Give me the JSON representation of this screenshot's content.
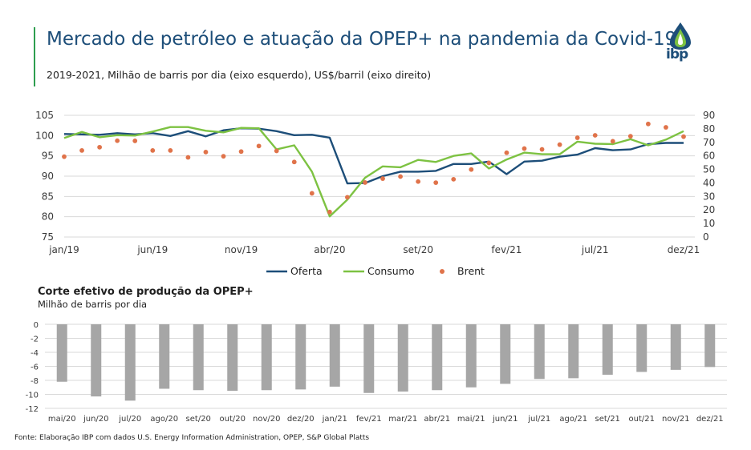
{
  "header": {
    "title": "Mercado de petróleo e atuação da OPEP+ na pandemia da Covid-19",
    "subtitle": "2019-2021, Milhão de barris por dia (eixo esquerdo), US$/barril (eixo direito)",
    "logo_text": "ibp"
  },
  "colors": {
    "oferta": "#1d4e79",
    "consumo": "#7dc242",
    "brent": "#e0734a",
    "bars": "#a6a6a6",
    "grid": "#d9d9d9",
    "title": "#1d4e79",
    "accent": "#2e9e4f"
  },
  "chart_data": [
    {
      "type": "line",
      "title": "",
      "xlabel": "",
      "ylabel": "Milhão de barris por dia",
      "y2label": "US$/barril",
      "ylim": [
        75,
        105
      ],
      "y2lim": [
        0,
        90
      ],
      "yticks": [
        "75",
        "80",
        "85",
        "90",
        "95",
        "100",
        "105"
      ],
      "y2ticks": [
        "0",
        "10",
        "20",
        "30",
        "40",
        "50",
        "60",
        "70",
        "80",
        "90"
      ],
      "x_tick_labels": [
        {
          "index": 0,
          "label": "jan/19"
        },
        {
          "index": 5,
          "label": "jun/19"
        },
        {
          "index": 10,
          "label": "nov/19"
        },
        {
          "index": 15,
          "label": "abr/20"
        },
        {
          "index": 20,
          "label": "set/20"
        },
        {
          "index": 25,
          "label": "fev/21"
        },
        {
          "index": 30,
          "label": "jul/21"
        },
        {
          "index": 35,
          "label": "dez/21"
        }
      ],
      "legend_position": "bottom",
      "series": [
        {
          "name": "Oferta",
          "axis": "left",
          "style": "line",
          "values": [
            100.4,
            100.3,
            100.2,
            100.6,
            100.3,
            100.6,
            99.9,
            101.1,
            99.8,
            101.3,
            101.8,
            101.7,
            101.1,
            100.1,
            100.2,
            99.5,
            88.2,
            88.3,
            90.0,
            91.1,
            91.1,
            91.3,
            93.0,
            93.0,
            93.6,
            90.5,
            93.6,
            93.8,
            94.8,
            95.3,
            96.9,
            96.4,
            96.6,
            97.9,
            98.2,
            98.2
          ]
        },
        {
          "name": "Consumo",
          "axis": "left",
          "style": "line",
          "values": [
            99.4,
            100.9,
            99.6,
            100.1,
            100.0,
            101.0,
            102.1,
            102.1,
            101.2,
            100.8,
            101.9,
            101.8,
            96.6,
            97.6,
            91.1,
            80.1,
            84.2,
            89.6,
            92.4,
            92.2,
            94.0,
            93.5,
            95.0,
            95.6,
            91.9,
            94.1,
            95.8,
            95.4,
            95.4,
            98.5,
            98.0,
            97.9,
            99.1,
            97.6,
            99.0,
            101.1
          ]
        },
        {
          "name": "Brent",
          "axis": "right",
          "style": "dots",
          "values": [
            59.4,
            64.0,
            66.4,
            71.2,
            71.1,
            64.0,
            64.0,
            58.9,
            62.8,
            59.7,
            63.2,
            67.3,
            63.7,
            55.5,
            32.3,
            18.5,
            29.4,
            40.3,
            43.2,
            44.7,
            41.0,
            40.2,
            42.7,
            49.9,
            54.8,
            62.3,
            65.4,
            64.8,
            68.3,
            73.4,
            75.2,
            70.8,
            74.5,
            83.6,
            81.1,
            74.2
          ]
        }
      ]
    },
    {
      "type": "bar",
      "title": "Corte efetivo de produção da OPEP+",
      "subtitle": "Milhão de barris por dia",
      "ylim": [
        -12,
        0
      ],
      "yticks": [
        "0",
        "-2",
        "-4",
        "-6",
        "-8",
        "-10",
        "-12"
      ],
      "categories": [
        "mai/20",
        "jun/20",
        "jul/20",
        "ago/20",
        "set/20",
        "out/20",
        "nov/20",
        "dez/20",
        "jan/21",
        "fev/21",
        "mar/21",
        "abr/21",
        "mai/21",
        "jun/21",
        "jul/21",
        "ago/21",
        "set/21",
        "out/21",
        "nov/21",
        "dez/21"
      ],
      "values": [
        -8.2,
        -10.3,
        -10.9,
        -9.2,
        -9.4,
        -9.5,
        -9.4,
        -9.3,
        -8.9,
        -9.8,
        -9.6,
        -9.4,
        -9.0,
        -8.5,
        -7.8,
        -7.7,
        -7.2,
        -6.8,
        -6.5,
        -6.1
      ]
    }
  ],
  "source": "Fonte: Elaboração IBP com dados U.S. Energy Information Administration, OPEP, S&P Global Platts"
}
